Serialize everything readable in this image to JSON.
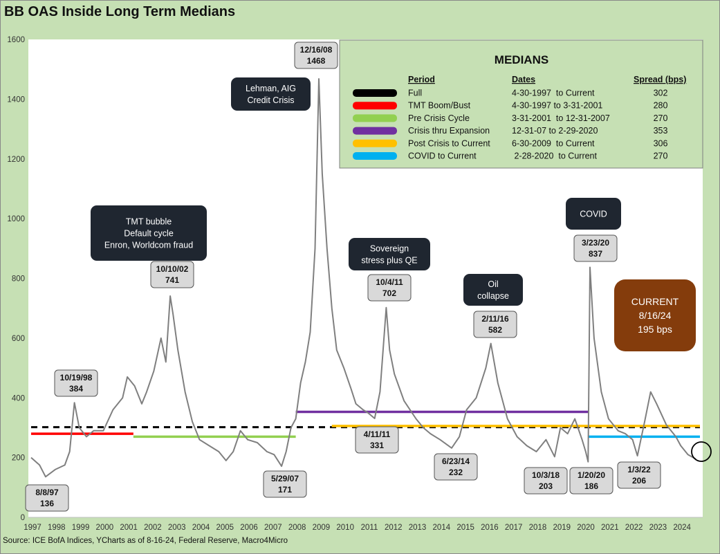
{
  "title": "BB OAS Inside Long Term Medians",
  "source": "Source: ICE BofA Indices, YCharts as of 8-16-24, Federal Reserve, Macro4Micro",
  "colors": {
    "background": "#c6e0b4",
    "plot_bg": "#ffffff",
    "series": "#7f7f7f",
    "dark_box": "#1f2630",
    "light_box": "#d9d9d9",
    "current_box": "#843c0c"
  },
  "chart_data": {
    "type": "line",
    "ylim": [
      0,
      1600
    ],
    "yticks": [
      0,
      200,
      400,
      600,
      800,
      1000,
      1200,
      1400,
      1600
    ],
    "xlim": [
      1997,
      2024.8
    ],
    "x_tick_labels": [
      "1997",
      "1998",
      "1999",
      "2000",
      "2001",
      "2002",
      "2003",
      "2004",
      "2005",
      "2006",
      "2007",
      "2008",
      "2009",
      "2010",
      "2011",
      "2012",
      "2013",
      "2014",
      "2015",
      "2016",
      "2017",
      "2018",
      "2019",
      "2020",
      "2021",
      "2022",
      "2023",
      "2024"
    ],
    "series": [
      {
        "name": "BB OAS",
        "x": [
          1997.0,
          1997.35,
          1997.6,
          1998.0,
          1998.4,
          1998.6,
          1998.8,
          1999.0,
          1999.3,
          1999.6,
          2000.0,
          2000.4,
          2000.8,
          2001.0,
          2001.3,
          2001.6,
          2001.8,
          2002.1,
          2002.4,
          2002.6,
          2002.78,
          2002.9,
          2003.1,
          2003.4,
          2003.7,
          2004.0,
          2004.4,
          2004.8,
          2005.1,
          2005.4,
          2005.7,
          2006.0,
          2006.4,
          2006.8,
          2007.1,
          2007.41,
          2007.6,
          2007.8,
          2008.0,
          2008.2,
          2008.4,
          2008.6,
          2008.8,
          2008.96,
          2009.1,
          2009.3,
          2009.5,
          2009.7,
          2010.0,
          2010.3,
          2010.5,
          2010.8,
          2011.0,
          2011.28,
          2011.5,
          2011.76,
          2011.9,
          2012.1,
          2012.5,
          2013.0,
          2013.3,
          2013.6,
          2014.0,
          2014.48,
          2014.8,
          2015.1,
          2015.5,
          2015.9,
          2016.11,
          2016.4,
          2016.8,
          2017.2,
          2017.6,
          2018.0,
          2018.4,
          2018.76,
          2019.0,
          2019.3,
          2019.6,
          2019.9,
          2020.05,
          2020.15,
          2020.23,
          2020.4,
          2020.7,
          2021.0,
          2021.4,
          2021.7,
          2022.0,
          2022.2,
          2022.5,
          2022.75,
          2023.0,
          2023.4,
          2023.8,
          2024.0,
          2024.3,
          2024.63
        ],
        "values": [
          200,
          175,
          136,
          160,
          175,
          220,
          384,
          300,
          270,
          290,
          290,
          360,
          400,
          470,
          440,
          380,
          420,
          490,
          600,
          520,
          741,
          680,
          560,
          420,
          320,
          260,
          240,
          220,
          190,
          220,
          290,
          260,
          250,
          220,
          210,
          171,
          220,
          300,
          330,
          450,
          520,
          620,
          900,
          1468,
          1150,
          900,
          700,
          560,
          500,
          430,
          380,
          360,
          350,
          331,
          420,
          702,
          560,
          480,
          390,
          330,
          300,
          280,
          260,
          232,
          270,
          360,
          400,
          500,
          582,
          450,
          330,
          270,
          240,
          220,
          260,
          203,
          300,
          280,
          330,
          260,
          220,
          186,
          837,
          600,
          420,
          330,
          290,
          280,
          260,
          206,
          320,
          420,
          380,
          310,
          270,
          240,
          210,
          195
        ]
      }
    ],
    "medians": [
      {
        "period": "Full",
        "dates": "4-30-1997  to Current",
        "spread": "302",
        "color": "#000000",
        "x_start": 1997.0,
        "x_end": 2024.8,
        "value": 302,
        "dashed": true
      },
      {
        "period": "TMT Boom/Bust",
        "dates": "4-30-1997 to 3-31-2001",
        "spread": "280",
        "color": "#ff0000",
        "x_start": 1997.0,
        "x_end": 2001.25,
        "value": 280,
        "dashed": false
      },
      {
        "period": "Pre Crisis Cycle",
        "dates": "3-31-2001  to 12-31-2007",
        "spread": "270",
        "color": "#92d050",
        "x_start": 2001.25,
        "x_end": 2008.0,
        "value": 270,
        "dashed": false
      },
      {
        "period": "Crisis thru Expansion",
        "dates": "12-31-07 to 2-29-2020",
        "spread": "353",
        "color": "#7030a0",
        "x_start": 2008.0,
        "x_end": 2020.16,
        "value": 353,
        "dashed": false
      },
      {
        "period": "Post Crisis to Current",
        "dates": "6-30-2009  to Current",
        "spread": "306",
        "color": "#ffc000",
        "x_start": 2009.5,
        "x_end": 2024.8,
        "value": 306,
        "dashed": false
      },
      {
        "period": "COVID to Current",
        "dates": " 2-28-2020  to Current",
        "spread": "270",
        "color": "#00b0f0",
        "x_start": 2020.16,
        "x_end": 2024.8,
        "value": 270,
        "dashed": false
      }
    ],
    "medians_header": {
      "title": "MEDIANS",
      "period": "Period",
      "dates": "Dates",
      "spread": "Spread (bps)"
    },
    "dark_annotations": [
      {
        "lines": [
          "Lehman, AIG",
          "Credit Crisis"
        ]
      },
      {
        "lines": [
          "TMT bubble",
          "Default cycle",
          "Enron, Worldcom fraud"
        ]
      },
      {
        "lines": [
          "Sovereign",
          "stress plus QE"
        ]
      },
      {
        "lines": [
          "Oil",
          "collapse"
        ]
      },
      {
        "lines": [
          "COVID"
        ]
      }
    ],
    "point_labels": [
      {
        "date": "12/16/08",
        "value": "1468"
      },
      {
        "date": "10/10/02",
        "value": "741"
      },
      {
        "date": "10/4/11",
        "value": "702"
      },
      {
        "date": "2/11/16",
        "value": "582"
      },
      {
        "date": "3/23/20",
        "value": "837"
      },
      {
        "date": "10/19/98",
        "value": "384"
      },
      {
        "date": "8/8/97",
        "value": "136"
      },
      {
        "date": "5/29/07",
        "value": "171"
      },
      {
        "date": "4/11/11",
        "value": "331"
      },
      {
        "date": "6/23/14",
        "value": "232"
      },
      {
        "date": "10/3/18",
        "value": "203"
      },
      {
        "date": "1/20/20",
        "value": "186"
      },
      {
        "date": "1/3/22",
        "value": "206"
      }
    ],
    "current": {
      "lines": [
        "CURRENT",
        "8/16/24",
        "195 bps"
      ]
    }
  }
}
